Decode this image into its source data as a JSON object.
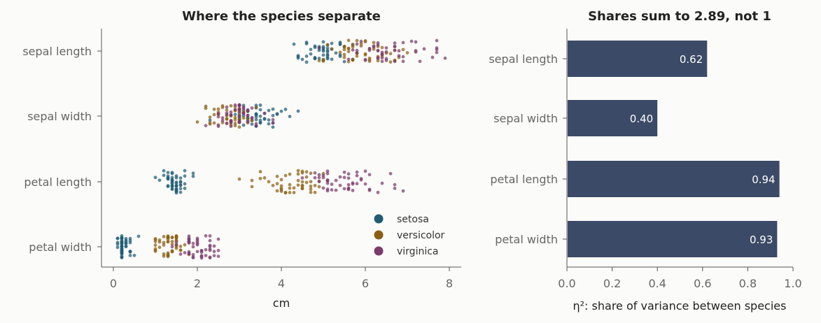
{
  "chart_data": [
    {
      "type": "scatter",
      "title": "Where the species separate",
      "xlabel": "cm",
      "xlim": [
        -0.3,
        8.3
      ],
      "xticks": [
        "0",
        "2",
        "4",
        "6",
        "8"
      ],
      "categories": [
        "sepal length",
        "sepal width",
        "petal length",
        "petal width"
      ],
      "legend_position": "lower-right",
      "series": [
        {
          "name": "setosa",
          "color": "#1f5c75",
          "values": {
            "sepal length": [
              5.1,
              4.9,
              4.7,
              4.6,
              5.0,
              5.4,
              4.6,
              5.0,
              4.4,
              4.9,
              5.4,
              4.8,
              4.8,
              4.3,
              5.8,
              5.7,
              5.4,
              5.1,
              5.7,
              5.1,
              5.4,
              5.1,
              4.6,
              5.1,
              4.8,
              5.0,
              5.0,
              5.2,
              5.2,
              4.7,
              4.8,
              5.4,
              5.2,
              5.5,
              4.9,
              5.0,
              5.5,
              4.9,
              4.4,
              5.1,
              5.0,
              4.5,
              4.4,
              5.0,
              5.1,
              4.8,
              5.1,
              4.6,
              5.3,
              5.0
            ],
            "sepal width": [
              3.5,
              3.0,
              3.2,
              3.1,
              3.6,
              3.9,
              3.4,
              3.4,
              2.9,
              3.1,
              3.7,
              3.4,
              3.0,
              3.0,
              4.0,
              4.4,
              3.9,
              3.5,
              3.8,
              3.8,
              3.4,
              3.7,
              3.6,
              3.3,
              3.4,
              3.0,
              3.4,
              3.5,
              3.4,
              3.2,
              3.1,
              3.4,
              4.1,
              4.2,
              3.1,
              3.2,
              3.5,
              3.6,
              3.0,
              3.4,
              3.5,
              2.3,
              3.2,
              3.5,
              3.8,
              3.0,
              3.8,
              3.2,
              3.7,
              3.3
            ],
            "petal length": [
              1.4,
              1.4,
              1.3,
              1.5,
              1.4,
              1.7,
              1.4,
              1.5,
              1.4,
              1.5,
              1.5,
              1.6,
              1.4,
              1.1,
              1.2,
              1.5,
              1.3,
              1.4,
              1.7,
              1.5,
              1.7,
              1.5,
              1.0,
              1.7,
              1.9,
              1.6,
              1.6,
              1.5,
              1.4,
              1.6,
              1.6,
              1.5,
              1.5,
              1.4,
              1.5,
              1.2,
              1.3,
              1.4,
              1.3,
              1.5,
              1.3,
              1.3,
              1.3,
              1.6,
              1.9,
              1.4,
              1.6,
              1.4,
              1.5,
              1.4
            ],
            "petal width": [
              0.2,
              0.2,
              0.2,
              0.2,
              0.2,
              0.4,
              0.3,
              0.2,
              0.2,
              0.1,
              0.2,
              0.2,
              0.1,
              0.1,
              0.2,
              0.4,
              0.4,
              0.3,
              0.3,
              0.3,
              0.2,
              0.4,
              0.2,
              0.5,
              0.2,
              0.2,
              0.4,
              0.2,
              0.2,
              0.2,
              0.2,
              0.4,
              0.1,
              0.2,
              0.2,
              0.2,
              0.2,
              0.1,
              0.2,
              0.2,
              0.3,
              0.3,
              0.2,
              0.6,
              0.4,
              0.3,
              0.2,
              0.2,
              0.2,
              0.2
            ]
          }
        },
        {
          "name": "versicolor",
          "color": "#8a5f14",
          "values": {
            "sepal length": [
              7.0,
              6.4,
              6.9,
              5.5,
              6.5,
              5.7,
              6.3,
              4.9,
              6.6,
              5.2,
              5.0,
              5.9,
              6.0,
              6.1,
              5.6,
              6.7,
              5.6,
              5.8,
              6.2,
              5.6,
              5.9,
              6.1,
              6.3,
              6.1,
              6.4,
              6.6,
              6.8,
              6.7,
              6.0,
              5.7,
              5.5,
              5.5,
              5.8,
              6.0,
              5.4,
              6.0,
              6.7,
              6.3,
              5.6,
              5.5,
              5.5,
              6.1,
              5.8,
              5.0,
              5.6,
              5.7,
              5.7,
              6.2,
              5.1,
              5.7
            ],
            "sepal width": [
              3.2,
              3.2,
              3.1,
              2.3,
              2.8,
              2.8,
              3.3,
              2.4,
              2.9,
              2.7,
              2.0,
              3.0,
              2.2,
              2.9,
              2.9,
              3.1,
              3.0,
              2.7,
              2.2,
              2.5,
              3.2,
              2.8,
              2.5,
              2.8,
              2.9,
              3.0,
              2.8,
              3.0,
              2.9,
              2.6,
              2.4,
              2.4,
              2.7,
              2.7,
              3.0,
              3.4,
              3.1,
              2.3,
              3.0,
              2.5,
              2.6,
              3.0,
              2.6,
              2.3,
              2.7,
              3.0,
              2.9,
              2.9,
              2.5,
              2.8
            ],
            "petal length": [
              4.7,
              4.5,
              4.9,
              4.0,
              4.6,
              4.5,
              4.7,
              3.3,
              4.6,
              3.9,
              3.5,
              4.2,
              4.0,
              4.7,
              3.6,
              4.4,
              4.5,
              4.1,
              4.5,
              3.9,
              4.8,
              4.0,
              4.9,
              4.7,
              4.3,
              4.4,
              4.8,
              5.0,
              4.5,
              3.5,
              3.8,
              3.7,
              3.9,
              5.1,
              4.5,
              4.5,
              4.7,
              4.4,
              4.1,
              4.0,
              4.4,
              4.6,
              4.0,
              3.3,
              4.2,
              4.2,
              4.2,
              4.3,
              3.0,
              4.1
            ],
            "petal width": [
              1.4,
              1.5,
              1.5,
              1.3,
              1.5,
              1.3,
              1.6,
              1.0,
              1.3,
              1.4,
              1.0,
              1.5,
              1.0,
              1.4,
              1.3,
              1.4,
              1.5,
              1.0,
              1.5,
              1.1,
              1.8,
              1.3,
              1.5,
              1.2,
              1.3,
              1.4,
              1.4,
              1.7,
              1.5,
              1.0,
              1.1,
              1.0,
              1.2,
              1.6,
              1.5,
              1.6,
              1.5,
              1.3,
              1.3,
              1.3,
              1.2,
              1.4,
              1.2,
              1.0,
              1.3,
              1.2,
              1.3,
              1.3,
              1.1,
              1.3
            ]
          }
        },
        {
          "name": "virginica",
          "color": "#7b3a6a",
          "values": {
            "sepal length": [
              6.3,
              5.8,
              7.1,
              6.3,
              6.5,
              7.6,
              4.9,
              7.3,
              6.7,
              7.2,
              6.5,
              6.4,
              6.8,
              5.7,
              5.8,
              6.4,
              6.5,
              7.7,
              7.7,
              6.0,
              6.9,
              5.6,
              7.7,
              6.3,
              6.7,
              7.2,
              6.2,
              6.1,
              6.4,
              7.2,
              7.4,
              7.9,
              6.4,
              6.3,
              6.1,
              7.7,
              6.3,
              6.4,
              6.0,
              6.9,
              6.7,
              6.9,
              5.8,
              6.8,
              6.7,
              6.7,
              6.3,
              6.5,
              6.2,
              5.9
            ],
            "sepal width": [
              3.3,
              2.7,
              3.0,
              2.9,
              3.0,
              3.0,
              2.5,
              2.9,
              2.5,
              3.6,
              3.2,
              2.7,
              3.0,
              2.5,
              2.8,
              3.2,
              3.0,
              3.8,
              2.6,
              2.2,
              3.2,
              2.8,
              2.8,
              2.7,
              3.3,
              3.2,
              2.8,
              3.0,
              2.8,
              3.0,
              2.8,
              3.8,
              2.8,
              2.8,
              2.6,
              3.0,
              3.4,
              3.1,
              3.0,
              3.1,
              3.1,
              3.1,
              2.7,
              3.2,
              3.3,
              3.0,
              2.5,
              3.0,
              3.4,
              3.0
            ],
            "petal length": [
              6.0,
              5.1,
              5.9,
              5.6,
              5.8,
              6.6,
              4.5,
              6.3,
              5.8,
              6.1,
              5.1,
              5.3,
              5.5,
              5.0,
              5.1,
              5.3,
              5.5,
              6.7,
              6.9,
              5.0,
              5.7,
              4.9,
              6.7,
              4.9,
              5.7,
              6.0,
              4.8,
              4.9,
              5.6,
              5.8,
              6.1,
              6.4,
              5.6,
              5.1,
              5.6,
              6.1,
              5.6,
              5.5,
              4.8,
              5.4,
              5.6,
              5.1,
              5.1,
              5.9,
              5.7,
              5.2,
              5.0,
              5.2,
              5.4,
              5.1
            ],
            "petal width": [
              2.5,
              1.9,
              2.1,
              1.8,
              2.2,
              2.1,
              1.7,
              1.8,
              1.8,
              2.5,
              2.0,
              1.9,
              2.1,
              2.0,
              2.4,
              2.3,
              1.8,
              2.2,
              2.3,
              1.5,
              2.3,
              2.0,
              2.0,
              1.8,
              2.1,
              1.8,
              1.8,
              1.8,
              2.1,
              1.6,
              1.9,
              2.0,
              2.2,
              1.5,
              1.4,
              2.3,
              2.4,
              1.8,
              1.8,
              2.1,
              2.4,
              2.3,
              1.9,
              2.3,
              2.5,
              2.3,
              1.9,
              2.0,
              2.3,
              1.8
            ]
          }
        }
      ]
    },
    {
      "type": "bar",
      "orientation": "horizontal",
      "title": "Shares sum to 2.89, not 1",
      "xlabel": "η²: share of variance between species",
      "xlim": [
        0,
        1
      ],
      "xticks": [
        "0.0",
        "0.2",
        "0.4",
        "0.6",
        "0.8",
        "1.0"
      ],
      "categories": [
        "sepal length",
        "sepal width",
        "petal length",
        "petal width"
      ],
      "values": [
        0.62,
        0.4,
        0.94,
        0.93
      ],
      "labels": [
        "0.62",
        "0.40",
        "0.94",
        "0.93"
      ],
      "color": "#3b4a66"
    }
  ]
}
